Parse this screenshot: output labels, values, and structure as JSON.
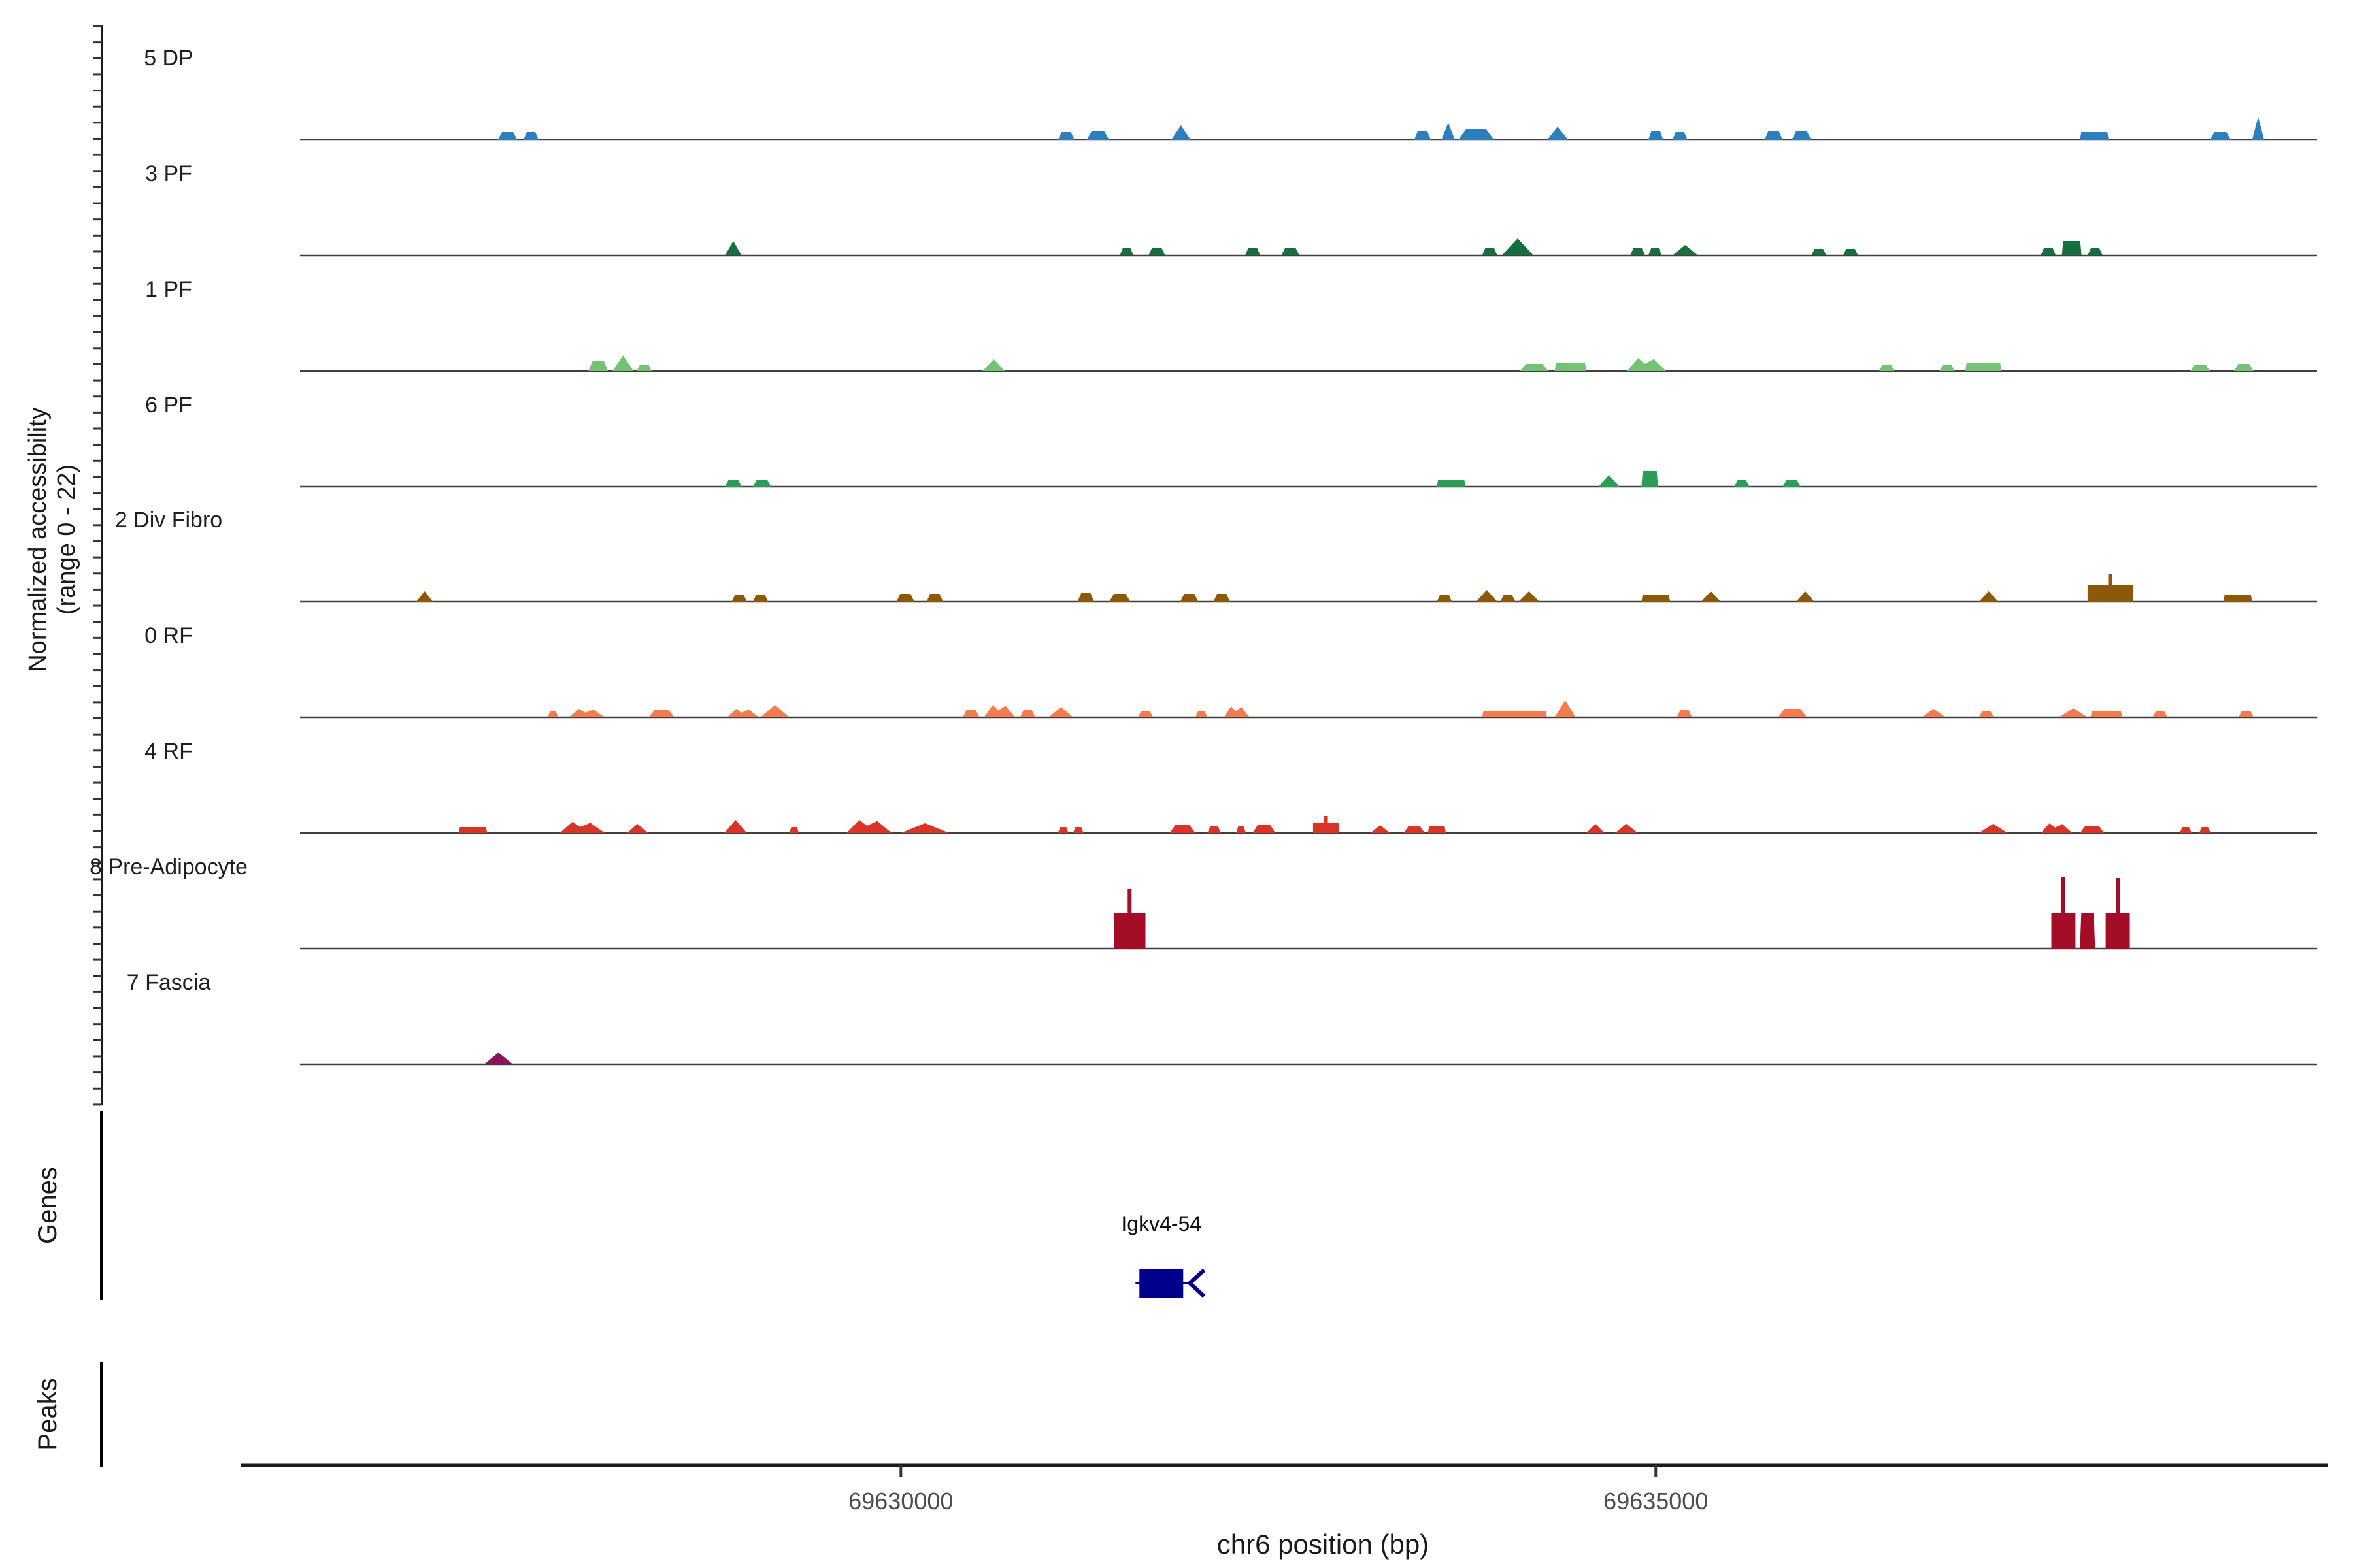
{
  "y_axis": {
    "title_line1": "Normalized accessibility",
    "title_line2": "(range 0 - 22)",
    "range": [
      0,
      22
    ]
  },
  "x_axis": {
    "title": "chr6 position (bp)",
    "ticks": [
      {
        "label": "69630000",
        "bp": 69630000
      },
      {
        "label": "69635000",
        "bp": 69635000
      }
    ]
  },
  "sections": {
    "genes_label": "Genes",
    "peaks_label": "Peaks"
  },
  "genes": [
    {
      "label": "Igkv4-54",
      "start_bp": 69631580,
      "end_bp": 69631870,
      "strand": "-",
      "color": "#00008b"
    }
  ],
  "peaks_row": {
    "items": []
  },
  "chart_data": {
    "type": "area",
    "title": "",
    "xlabel": "chr6 position (bp)",
    "ylabel": "Normalized accessibility (range 0 - 22)",
    "xlim": [
      69626020,
      69639380
    ],
    "ylim_per_track": [
      0,
      22
    ],
    "grid": false,
    "legend": "none",
    "peak_format": "[start_bp, width_bp, height_norm, shape, needle_height_norm?] shapes: t=trapezoid p=pointed r=rect m=double-peak w=block-with-needle",
    "tracks": [
      {
        "name": "5 DP",
        "color": "#2e7ebc",
        "peaks": [
          [
            69627330,
            130,
            2.4,
            "t"
          ],
          [
            69627500,
            100,
            2.4,
            "t"
          ],
          [
            69631040,
            110,
            2.4,
            "t"
          ],
          [
            69631230,
            150,
            2.6,
            "t"
          ],
          [
            69631790,
            130,
            4.4,
            "p"
          ],
          [
            69633400,
            110,
            2.8,
            "t"
          ],
          [
            69633580,
            90,
            5.2,
            "p"
          ],
          [
            69633690,
            240,
            3.2,
            "t"
          ],
          [
            69634280,
            140,
            4.0,
            "p"
          ],
          [
            69634950,
            100,
            2.8,
            "t"
          ],
          [
            69635110,
            100,
            2.4,
            "t"
          ],
          [
            69635720,
            120,
            2.8,
            "t"
          ],
          [
            69635900,
            130,
            2.6,
            "t"
          ],
          [
            69637810,
            190,
            2.4,
            "r"
          ],
          [
            69638670,
            140,
            2.4,
            "t"
          ],
          [
            69638950,
            80,
            7.0,
            "p"
          ]
        ]
      },
      {
        "name": "3 PF",
        "color": "#156f3e",
        "peaks": [
          [
            69628835,
            110,
            4.4,
            "p"
          ],
          [
            69631450,
            90,
            2.2,
            "t"
          ],
          [
            69631640,
            110,
            2.4,
            "t"
          ],
          [
            69632280,
            100,
            2.4,
            "t"
          ],
          [
            69632520,
            120,
            2.4,
            "t"
          ],
          [
            69633850,
            100,
            2.4,
            "t"
          ],
          [
            69633980,
            210,
            5.2,
            "p"
          ],
          [
            69634830,
            100,
            2.2,
            "t"
          ],
          [
            69634950,
            90,
            2.2,
            "t"
          ],
          [
            69635110,
            170,
            3.2,
            "p"
          ],
          [
            69636030,
            100,
            2.0,
            "t"
          ],
          [
            69636240,
            100,
            2.0,
            "t"
          ],
          [
            69637550,
            100,
            2.4,
            "t"
          ],
          [
            69637690,
            130,
            4.4,
            "r"
          ],
          [
            69637860,
            100,
            2.2,
            "t"
          ]
        ]
      },
      {
        "name": "1 PF",
        "color": "#73c375",
        "peaks": [
          [
            69627930,
            130,
            3.2,
            "t"
          ],
          [
            69628090,
            140,
            4.8,
            "p"
          ],
          [
            69628250,
            100,
            2.0,
            "t"
          ],
          [
            69630540,
            150,
            3.6,
            "p"
          ],
          [
            69634100,
            190,
            2.2,
            "t"
          ],
          [
            69634330,
            210,
            2.4,
            "r"
          ],
          [
            69634810,
            260,
            4.0,
            "m"
          ],
          [
            69636480,
            100,
            2.0,
            "t"
          ],
          [
            69636880,
            100,
            2.0,
            "t"
          ],
          [
            69637050,
            240,
            2.4,
            "r"
          ],
          [
            69638540,
            130,
            2.0,
            "t"
          ],
          [
            69638830,
            130,
            2.2,
            "t"
          ]
        ]
      },
      {
        "name": "6 PF",
        "color": "#2a9d56",
        "peaks": [
          [
            69628835,
            110,
            2.2,
            "t"
          ],
          [
            69629020,
            120,
            2.2,
            "t"
          ],
          [
            69633550,
            190,
            2.2,
            "r"
          ],
          [
            69634620,
            140,
            3.6,
            "p"
          ],
          [
            69634905,
            110,
            4.8,
            "r"
          ],
          [
            69635520,
            100,
            2.0,
            "t"
          ],
          [
            69635840,
            120,
            2.0,
            "t"
          ]
        ]
      },
      {
        "name": "2 Div Fibro",
        "color": "#8c5809",
        "peaks": [
          [
            69626790,
            110,
            3.2,
            "p"
          ],
          [
            69628880,
            100,
            2.2,
            "t"
          ],
          [
            69629020,
            100,
            2.2,
            "t"
          ],
          [
            69629970,
            120,
            2.4,
            "t"
          ],
          [
            69630170,
            110,
            2.4,
            "t"
          ],
          [
            69631170,
            110,
            2.6,
            "t"
          ],
          [
            69631380,
            140,
            2.4,
            "t"
          ],
          [
            69631850,
            120,
            2.4,
            "t"
          ],
          [
            69632070,
            110,
            2.4,
            "t"
          ],
          [
            69633550,
            100,
            2.2,
            "t"
          ],
          [
            69633810,
            140,
            3.6,
            "p"
          ],
          [
            69633970,
            100,
            2.0,
            "t"
          ],
          [
            69634090,
            140,
            3.2,
            "p"
          ],
          [
            69634905,
            190,
            2.2,
            "r"
          ],
          [
            69635300,
            130,
            3.2,
            "p"
          ],
          [
            69635930,
            120,
            3.2,
            "p"
          ],
          [
            69637140,
            130,
            3.2,
            "p"
          ],
          [
            69637860,
            300,
            5.0,
            "w",
            8.4
          ],
          [
            69638760,
            190,
            2.2,
            "r"
          ]
        ]
      },
      {
        "name": "0 RF",
        "color": "#f57a4e",
        "peaks": [
          [
            69627660,
            70,
            1.8,
            "t"
          ],
          [
            69627800,
            240,
            2.6,
            "m"
          ],
          [
            69628330,
            170,
            2.2,
            "t"
          ],
          [
            69628850,
            210,
            2.6,
            "m"
          ],
          [
            69629070,
            190,
            3.8,
            "p"
          ],
          [
            69630410,
            110,
            2.2,
            "t"
          ],
          [
            69630550,
            210,
            3.8,
            "m"
          ],
          [
            69630790,
            100,
            2.2,
            "t"
          ],
          [
            69630980,
            160,
            3.2,
            "p"
          ],
          [
            69631570,
            100,
            2.0,
            "t"
          ],
          [
            69631950,
            80,
            1.8,
            "t"
          ],
          [
            69632140,
            170,
            3.4,
            "m"
          ],
          [
            69633850,
            430,
            1.8,
            "r"
          ],
          [
            69634330,
            140,
            5.2,
            "p"
          ],
          [
            69635140,
            100,
            2.2,
            "t"
          ],
          [
            69635810,
            190,
            2.6,
            "t"
          ],
          [
            69636760,
            160,
            2.6,
            "p"
          ],
          [
            69637140,
            100,
            1.8,
            "t"
          ],
          [
            69637670,
            190,
            2.8,
            "p"
          ],
          [
            69637880,
            210,
            1.8,
            "r"
          ],
          [
            69638290,
            100,
            1.8,
            "t"
          ],
          [
            69638860,
            100,
            2.0,
            "t"
          ]
        ]
      },
      {
        "name": "4 RF",
        "color": "#d93425",
        "peaks": [
          [
            69627070,
            190,
            1.8,
            "r"
          ],
          [
            69627740,
            300,
            3.4,
            "m"
          ],
          [
            69628185,
            140,
            2.8,
            "p"
          ],
          [
            69628830,
            150,
            4.0,
            "p"
          ],
          [
            69629260,
            65,
            1.8,
            "t"
          ],
          [
            69629640,
            300,
            4.0,
            "m"
          ],
          [
            69630000,
            320,
            3.0,
            "p"
          ],
          [
            69631040,
            70,
            1.8,
            "t"
          ],
          [
            69631140,
            70,
            1.8,
            "t"
          ],
          [
            69631780,
            170,
            2.4,
            "t"
          ],
          [
            69632030,
            90,
            2.0,
            "t"
          ],
          [
            69632220,
            65,
            2.0,
            "t"
          ],
          [
            69632330,
            150,
            2.4,
            "t"
          ],
          [
            69632730,
            170,
            3.0,
            "w",
            5.2
          ],
          [
            69633110,
            130,
            2.4,
            "p"
          ],
          [
            69633330,
            140,
            2.0,
            "t"
          ],
          [
            69633490,
            120,
            2.0,
            "r"
          ],
          [
            69634540,
            120,
            2.8,
            "p"
          ],
          [
            69634730,
            150,
            2.8,
            "p"
          ],
          [
            69637140,
            190,
            2.8,
            "p"
          ],
          [
            69637550,
            210,
            3.0,
            "m"
          ],
          [
            69637810,
            160,
            2.2,
            "t"
          ],
          [
            69638470,
            80,
            1.8,
            "t"
          ],
          [
            69638600,
            75,
            1.8,
            "t"
          ]
        ]
      },
      {
        "name": "8 Pre-Adipocyte",
        "color": "#a30d28",
        "peaks": [
          [
            69631410,
            210,
            10.8,
            "w",
            18.4
          ],
          [
            69637620,
            160,
            10.8,
            "w",
            21.8
          ],
          [
            69637810,
            100,
            10.8,
            "r"
          ],
          [
            69637980,
            160,
            10.8,
            "w",
            21.6
          ]
        ]
      },
      {
        "name": "7 Fascia",
        "color": "#8e1160",
        "peaks": [
          [
            69627240,
            190,
            3.6,
            "p"
          ]
        ]
      }
    ]
  }
}
